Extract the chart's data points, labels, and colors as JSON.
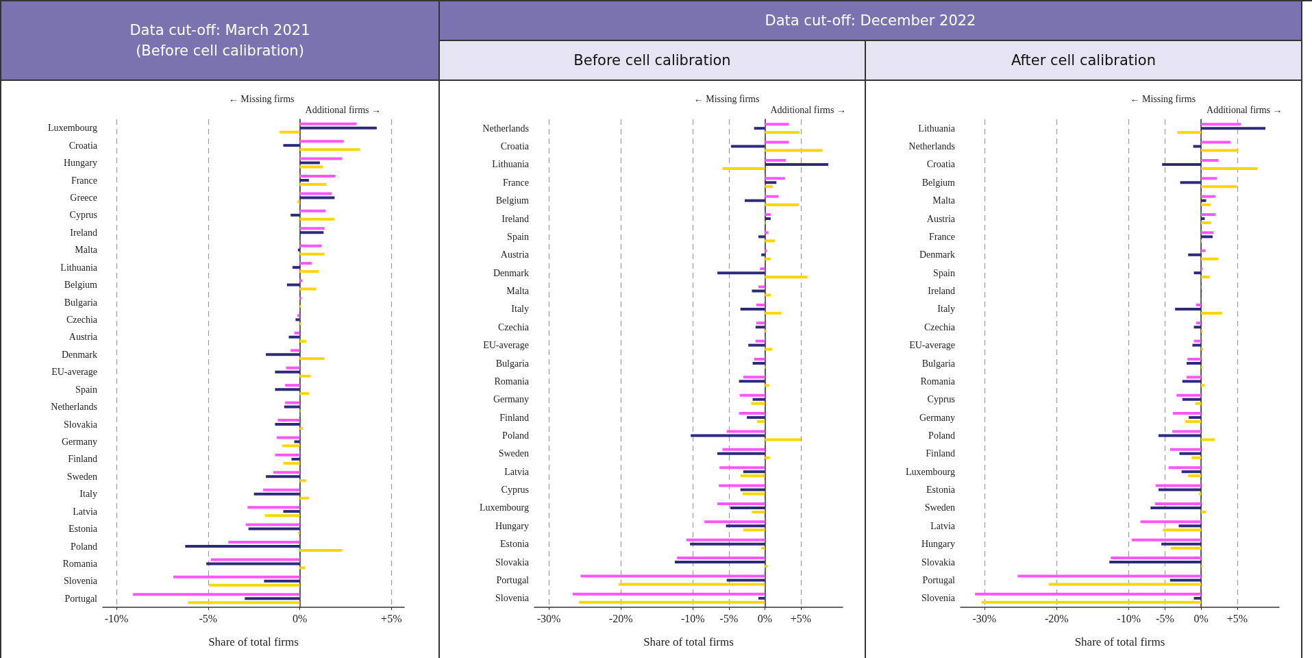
{
  "chart_data": [
    {
      "type": "bar",
      "orientation": "horizontal",
      "title": "Data cut-off: March 2021",
      "subtitle": "(Before cell calibration)",
      "xlabel": "Share of total firms",
      "annotations": [
        "← Missing firms",
        "Additional firms →"
      ],
      "grid": "x",
      "categories": [
        "Luxembourg",
        "Croatia",
        "Hungary",
        "France",
        "Greece",
        "Cyprus",
        "Ireland",
        "Malta",
        "Lithuania",
        "Belgium",
        "Bulgaria",
        "Czechia",
        "Austria",
        "Denmark",
        "EU-average",
        "Spain",
        "Netherlands",
        "Slovakia",
        "Germany",
        "Finland",
        "Sweden",
        "Italy",
        "Latvia",
        "Estonia",
        "Poland",
        "Romania",
        "Slovenia",
        "Portugal"
      ],
      "xlim": [
        -10.75,
        5.7
      ],
      "xticks": [
        {
          "value": -10,
          "label": "-10%"
        },
        {
          "value": -5,
          "label": "-5%"
        },
        {
          "value": 0,
          "label": "0%"
        },
        {
          "value": 5,
          "label": "+5%"
        }
      ],
      "series": [
        {
          "color": "#ff55ff",
          "values": [
            3.1,
            2.4,
            2.3,
            1.95,
            1.75,
            1.4,
            1.35,
            1.2,
            0.65,
            0.15,
            0.1,
            -0.13,
            -0.3,
            -0.5,
            -0.75,
            -0.8,
            -0.8,
            -1.2,
            -1.25,
            -1.35,
            -1.45,
            -2.0,
            -2.85,
            -2.95,
            -3.9,
            -4.85,
            -6.9,
            -9.1
          ]
        },
        {
          "color": "#2e2a7a",
          "values": [
            4.2,
            -0.9,
            1.1,
            0.5,
            1.9,
            -0.5,
            1.3,
            -0.1,
            -0.4,
            -0.7,
            null,
            -0.23,
            -0.6,
            -1.85,
            -1.35,
            -1.35,
            -0.85,
            -1.35,
            -0.3,
            -0.45,
            -1.85,
            -2.5,
            -0.9,
            -2.8,
            -6.25,
            -5.1,
            -1.95,
            -3.0
          ]
        },
        {
          "color": "#ffd500",
          "values": [
            -1.1,
            3.3,
            1.25,
            1.45,
            -0.13,
            1.9,
            null,
            1.35,
            1.05,
            0.9,
            0.07,
            0.08,
            0.35,
            1.35,
            0.6,
            0.5,
            0.04,
            0.17,
            -0.95,
            -0.9,
            0.35,
            0.5,
            -1.9,
            -0.1,
            2.3,
            0.3,
            -4.95,
            -6.1
          ]
        }
      ]
    },
    {
      "type": "bar",
      "orientation": "horizontal",
      "title": "Data cut-off: December 2022",
      "subtitle": "Before cell calibration",
      "xlabel": "Share of total firms",
      "annotations": [
        "← Missing firms",
        "Additional firms →"
      ],
      "grid": "x",
      "categories": [
        "Netherlands",
        "Croatia",
        "Lithuania",
        "France",
        "Belgium",
        "Ireland",
        "Spain",
        "Austria",
        "Denmark",
        "Malta",
        "Italy",
        "Czechia",
        "EU-average",
        "Bulgaria",
        "Romania",
        "Germany",
        "Finland",
        "Poland",
        "Sweden",
        "Latvia",
        "Cyprus",
        "Luxembourg",
        "Hungary",
        "Estonia",
        "Slovakia",
        "Portugal",
        "Slovenia"
      ],
      "xlim": [
        -32,
        10.8
      ],
      "xticks": [
        {
          "value": -30,
          "label": "-30%"
        },
        {
          "value": -20,
          "label": "-20%"
        },
        {
          "value": -10,
          "label": "-10%"
        },
        {
          "value": -5,
          "label": "-5%"
        },
        {
          "value": 0,
          "label": "0%"
        },
        {
          "value": 5,
          "label": "+5%"
        }
      ],
      "series": [
        {
          "color": "#ff55ff",
          "values": [
            3.3,
            3.3,
            2.9,
            2.8,
            1.9,
            0.8,
            0.5,
            0.3,
            -0.7,
            -0.9,
            -1.2,
            -1.2,
            -1.3,
            -1.5,
            -3.0,
            -3.5,
            -3.6,
            -5.3,
            -5.9,
            -6.3,
            -6.4,
            -6.6,
            -8.4,
            -10.9,
            -12.2,
            -25.6,
            -26.7
          ]
        },
        {
          "color": "#2e2a7a",
          "values": [
            -1.5,
            -4.7,
            8.8,
            1.6,
            -2.8,
            0.8,
            -0.9,
            -0.5,
            -6.6,
            -1.8,
            -3.4,
            -1.3,
            -2.3,
            -1.7,
            -3.6,
            -1.7,
            -2.5,
            -10.3,
            -6.6,
            -3.0,
            -3.4,
            -4.8,
            -5.4,
            -10.4,
            -12.5,
            -5.3,
            -0.9
          ]
        },
        {
          "color": "#ffd500",
          "values": [
            4.8,
            8.0,
            -5.9,
            1.1,
            4.7,
            0.1,
            1.4,
            0.8,
            5.9,
            0.8,
            2.3,
            0.2,
            1.0,
            0.1,
            0.6,
            -1.9,
            -1.1,
            5.0,
            0.7,
            -3.4,
            -3.1,
            -1.8,
            -3.0,
            -0.5,
            0.4,
            -20.3,
            -25.8
          ]
        }
      ]
    },
    {
      "type": "bar",
      "orientation": "horizontal",
      "subtitle": "After cell calibration",
      "xlabel": "Share of total firms",
      "annotations": [
        "← Missing firms",
        "Additional firms →"
      ],
      "grid": "x",
      "categories": [
        "Lithuania",
        "Netherlands",
        "Croatia",
        "Belgium",
        "Malta",
        "Austria",
        "France",
        "Denmark",
        "Spain",
        "Ireland",
        "Italy",
        "Czechia",
        "EU-average",
        "Bulgaria",
        "Romania",
        "Cyprus",
        "Germany",
        "Poland",
        "Finland",
        "Luxembourg",
        "Estonia",
        "Sweden",
        "Latvia",
        "Hungary",
        "Slovakia",
        "Portugal",
        "Slovenia"
      ],
      "xlim": [
        -33.3,
        10.8
      ],
      "xticks": [
        {
          "value": -30,
          "label": "-30%"
        },
        {
          "value": -20,
          "label": "-20%"
        },
        {
          "value": -10,
          "label": "-10%"
        },
        {
          "value": -5,
          "label": "-5%"
        },
        {
          "value": 0,
          "label": "0%"
        },
        {
          "value": 5,
          "label": "+5%"
        }
      ],
      "series": [
        {
          "color": "#ff55ff",
          "values": [
            5.5,
            4.1,
            2.4,
            2.2,
            2.0,
            2.0,
            1.7,
            0.6,
            0.2,
            0.1,
            -0.7,
            -0.7,
            -1.0,
            -1.9,
            -2.0,
            -3.4,
            -3.9,
            -4.0,
            -4.3,
            -4.5,
            -6.3,
            -6.4,
            -8.4,
            -9.6,
            -12.5,
            -25.4,
            -31.3
          ]
        },
        {
          "color": "#2e2a7a",
          "values": [
            8.9,
            -1.1,
            -5.4,
            -2.9,
            0.7,
            0.5,
            1.6,
            -1.8,
            -1.0,
            0.1,
            -3.6,
            -1.0,
            -1.2,
            -2.0,
            -2.6,
            -2.6,
            -1.7,
            -5.9,
            -3.0,
            -2.7,
            -5.9,
            -7.0,
            -3.1,
            -5.5,
            -12.7,
            -4.3,
            -1.0
          ]
        },
        {
          "color": "#ffd500",
          "values": [
            -3.3,
            5.1,
            7.8,
            5.0,
            1.3,
            1.4,
            0.1,
            2.4,
            1.2,
            null,
            2.9,
            0.2,
            0.3,
            0.2,
            0.5,
            -0.8,
            -2.2,
            1.9,
            -1.3,
            -1.8,
            -0.3,
            0.7,
            -5.3,
            -4.2,
            0.2,
            -21.1,
            -30.4
          ]
        }
      ]
    }
  ]
}
